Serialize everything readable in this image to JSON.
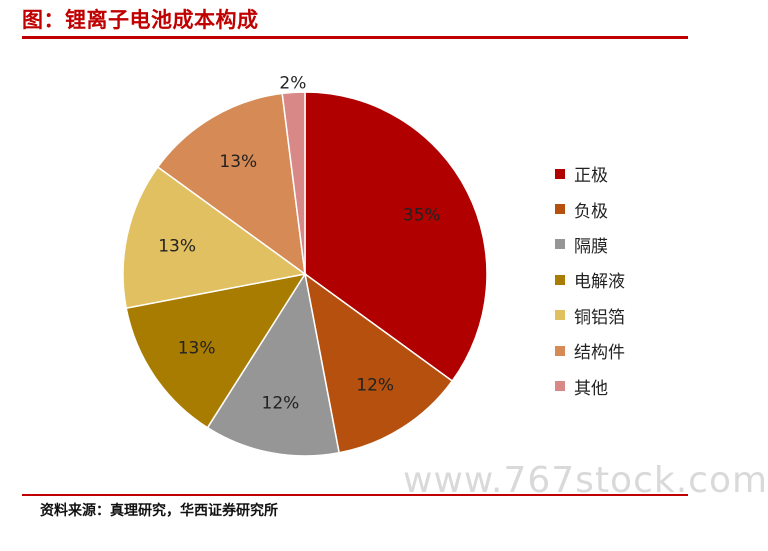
{
  "header": {
    "title": "图：锂离子电池成本构成"
  },
  "chart_data": {
    "type": "pie",
    "categories": [
      "正极",
      "负极",
      "隔膜",
      "电解液",
      "铜铝箔",
      "结构件",
      "其他"
    ],
    "values": [
      35,
      12,
      12,
      13,
      13,
      13,
      2
    ],
    "labels": [
      "35%",
      "12%",
      "12%",
      "13%",
      "13%",
      "13%",
      "2%"
    ],
    "colors": [
      "#b00000",
      "#b5500f",
      "#969696",
      "#a87c00",
      "#e0c060",
      "#d68a55",
      "#d98888"
    ],
    "label_colors": [
      "#222222",
      "#222222",
      "#222222",
      "#222222",
      "#222222",
      "#222222",
      "#222222"
    ],
    "legend_position": "right",
    "start": "12 o'clock",
    "direction": "clockwise"
  },
  "watermark": "www.767stock.com",
  "footer": {
    "source": "资料来源：真理研究，华西证券研究所"
  }
}
